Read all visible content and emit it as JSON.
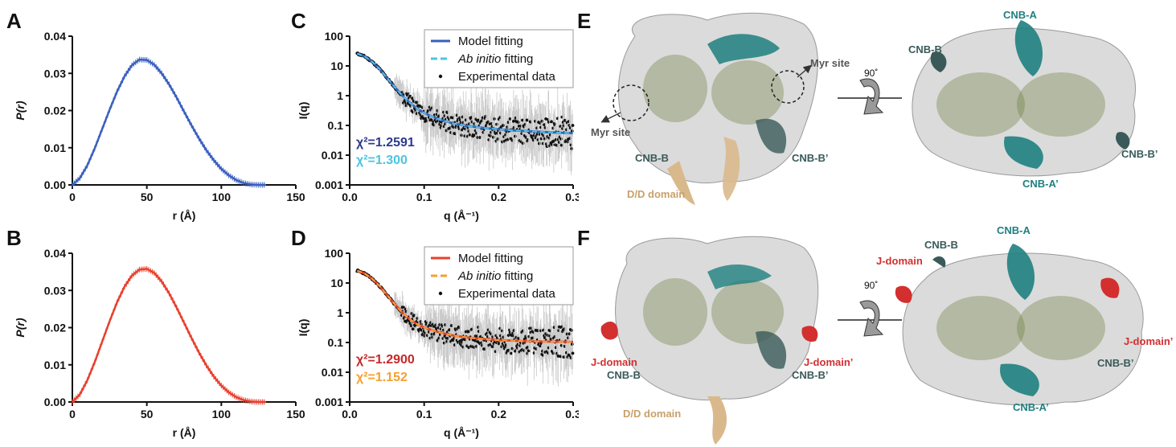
{
  "panels": {
    "A": "A",
    "B": "B",
    "C": "C",
    "D": "D",
    "E": "E",
    "F": "F"
  },
  "colors": {
    "blue": "#3a5fbf",
    "red": "#e8402e",
    "cyan": "#4cc4e0",
    "orange": "#f5a030",
    "navy": "#2c3a8c",
    "teal": "#1f7f7f",
    "darkteal": "#3a5a5a",
    "tan": "#d9b98c",
    "jred": "#d32f2f",
    "olive": "#6b7a3a"
  },
  "chart_data": [
    {
      "id": "A",
      "type": "line",
      "xlabel": "r (Å)",
      "ylabel": "P(r)",
      "xlim": [
        0,
        150
      ],
      "ylim": [
        0,
        0.04
      ],
      "xticks": [
        0,
        50,
        100,
        150
      ],
      "yticks": [
        0.0,
        0.01,
        0.02,
        0.03,
        0.04
      ],
      "ytick_labels": [
        "0.00",
        "0.01",
        "0.02",
        "0.03",
        "0.04"
      ],
      "series": [
        {
          "x": [
            0,
            5,
            10,
            15,
            20,
            25,
            30,
            35,
            40,
            45,
            50,
            55,
            60,
            65,
            70,
            75,
            80,
            85,
            90,
            95,
            100,
            105,
            110,
            115,
            120,
            125,
            130
          ],
          "values": [
            0,
            0.0018,
            0.0052,
            0.0098,
            0.015,
            0.0202,
            0.0251,
            0.0292,
            0.0322,
            0.0337,
            0.0336,
            0.0323,
            0.03,
            0.027,
            0.0235,
            0.0197,
            0.016,
            0.0125,
            0.0093,
            0.0066,
            0.0043,
            0.0026,
            0.0013,
            0.0005,
            0.0001,
            0,
            0
          ]
        }
      ]
    },
    {
      "id": "B",
      "type": "line",
      "xlabel": "r (Å)",
      "ylabel": "P(r)",
      "xlim": [
        0,
        150
      ],
      "ylim": [
        0,
        0.04
      ],
      "xticks": [
        0,
        50,
        100,
        150
      ],
      "yticks": [
        0.0,
        0.01,
        0.02,
        0.03,
        0.04
      ],
      "ytick_labels": [
        "0.00",
        "0.01",
        "0.02",
        "0.03",
        "0.04"
      ],
      "series": [
        {
          "x": [
            0,
            5,
            10,
            15,
            20,
            25,
            30,
            35,
            40,
            45,
            50,
            55,
            60,
            65,
            70,
            75,
            80,
            85,
            90,
            95,
            100,
            105,
            110,
            115,
            120,
            125,
            130
          ],
          "values": [
            0,
            0.002,
            0.0058,
            0.0107,
            0.0162,
            0.0217,
            0.0268,
            0.031,
            0.034,
            0.0356,
            0.0358,
            0.0347,
            0.0324,
            0.0292,
            0.0254,
            0.0213,
            0.0172,
            0.0133,
            0.0098,
            0.0068,
            0.0044,
            0.0026,
            0.0013,
            0.0005,
            0.0001,
            0,
            0
          ]
        }
      ]
    },
    {
      "id": "C",
      "type": "scatter",
      "xlabel": "q (Å⁻¹)",
      "ylabel": "I(q)",
      "yscale": "log",
      "xlim": [
        0,
        0.3
      ],
      "ylim": [
        0.001,
        100
      ],
      "xticks": [
        0.0,
        0.1,
        0.2,
        0.3
      ],
      "xtick_labels": [
        "0.0",
        "0.1",
        "0.2",
        "0.3"
      ],
      "yticks": [
        0.001,
        0.01,
        0.1,
        1,
        10,
        100
      ],
      "ytick_labels": [
        "0.001",
        "0.01",
        "0.1",
        "1",
        "10",
        "100"
      ],
      "legend": {
        "position": "top-right",
        "entries": [
          {
            "label": "Model fitting",
            "style": "solid",
            "color": "#3a5fbf"
          },
          {
            "label_italic": "Ab initio",
            "label_rest": " fitting",
            "style": "dashed",
            "color": "#4cc4e0"
          },
          {
            "label": "Experimental data",
            "style": "dot",
            "color": "#111111"
          }
        ]
      },
      "fit_x": [
        0.01,
        0.02,
        0.03,
        0.04,
        0.05,
        0.06,
        0.07,
        0.08,
        0.09,
        0.1,
        0.12,
        0.14,
        0.16,
        0.18,
        0.2,
        0.22,
        0.24,
        0.26,
        0.28,
        0.3
      ],
      "series": [
        {
          "name": "Model fitting",
          "values": [
            26,
            21,
            14,
            8,
            4,
            2,
            1.05,
            0.6,
            0.38,
            0.26,
            0.16,
            0.115,
            0.095,
            0.082,
            0.074,
            0.068,
            0.064,
            0.06,
            0.057,
            0.055
          ]
        },
        {
          "name": "Ab initio fitting",
          "values": [
            26,
            21,
            14,
            8,
            4,
            2,
            1.05,
            0.6,
            0.38,
            0.26,
            0.16,
            0.115,
            0.095,
            0.082,
            0.074,
            0.068,
            0.064,
            0.06,
            0.057,
            0.055
          ]
        }
      ],
      "annotations": [
        {
          "text": "χ²=1.2591",
          "color": "#2c3a8c"
        },
        {
          "text": "χ²=1.300",
          "color": "#4cc4e0"
        }
      ]
    },
    {
      "id": "D",
      "type": "scatter",
      "xlabel": "q (Å⁻¹)",
      "ylabel": "I(q)",
      "yscale": "log",
      "xlim": [
        0,
        0.3
      ],
      "ylim": [
        0.001,
        100
      ],
      "xticks": [
        0.0,
        0.1,
        0.2,
        0.3
      ],
      "xtick_labels": [
        "0.0",
        "0.1",
        "0.2",
        "0.3"
      ],
      "yticks": [
        0.001,
        0.01,
        0.1,
        1,
        10,
        100
      ],
      "ytick_labels": [
        "0.001",
        "0.01",
        "0.1",
        "1",
        "10",
        "100"
      ],
      "legend": {
        "position": "top-right",
        "entries": [
          {
            "label": "Model fitting",
            "style": "solid",
            "color": "#e8402e"
          },
          {
            "label_italic": "Ab initio",
            "label_rest": " fitting",
            "style": "dashed",
            "color": "#f5a030"
          },
          {
            "label": "Experimental data",
            "style": "dot",
            "color": "#111111"
          }
        ]
      },
      "fit_x": [
        0.01,
        0.02,
        0.03,
        0.04,
        0.05,
        0.06,
        0.07,
        0.08,
        0.09,
        0.1,
        0.12,
        0.14,
        0.16,
        0.18,
        0.2,
        0.22,
        0.24,
        0.26,
        0.28,
        0.3
      ],
      "series": [
        {
          "name": "Model fitting",
          "values": [
            26,
            21,
            14,
            8,
            4,
            2,
            1.05,
            0.62,
            0.42,
            0.32,
            0.22,
            0.17,
            0.145,
            0.13,
            0.12,
            0.115,
            0.11,
            0.108,
            0.106,
            0.105
          ]
        },
        {
          "name": "Ab initio fitting",
          "values": [
            26,
            21,
            14,
            8,
            4,
            2,
            1.05,
            0.62,
            0.42,
            0.32,
            0.22,
            0.17,
            0.145,
            0.13,
            0.12,
            0.115,
            0.11,
            0.108,
            0.106,
            0.105
          ]
        }
      ],
      "annotations": [
        {
          "text": "χ²=1.2900",
          "color": "#c62828"
        },
        {
          "text": "χ²=1.152",
          "color": "#f5a030"
        }
      ]
    }
  ],
  "structures": {
    "E": {
      "rotation": "90˚",
      "left_labels": [
        "Myr site",
        "Myr site",
        "CNB-B",
        "CNB-B’",
        "D/D domain"
      ],
      "right_labels": [
        "CNB-A",
        "CNB-B",
        "CNB-B’",
        "CNB-A’"
      ]
    },
    "F": {
      "rotation": "90˚",
      "left_labels": [
        "J-domain",
        "CNB-B",
        "J-domain’",
        "CNB-B’",
        "D/D domain"
      ],
      "right_labels": [
        "CNB-A",
        "CNB-B",
        "J-domain",
        "J-domain’",
        "CNB-B’",
        "CNB-A’"
      ]
    }
  }
}
